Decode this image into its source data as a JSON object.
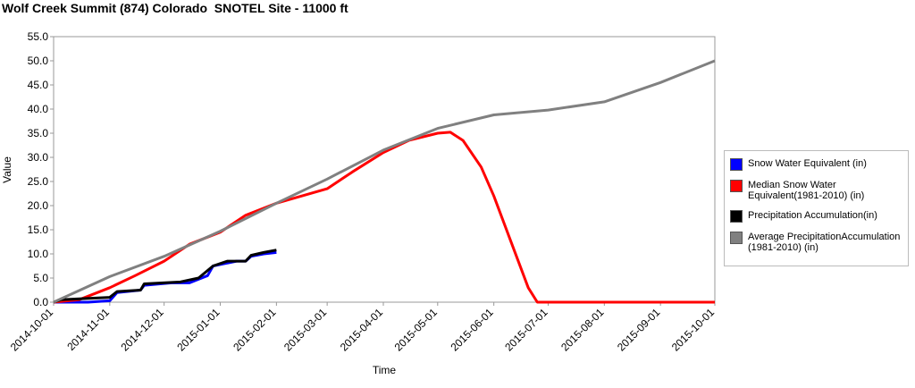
{
  "chart_data": {
    "type": "line",
    "title": "Wolf Creek Summit (874) Colorado  SNOTEL Site - 11000 ft",
    "x_label": "Time",
    "y_label": "Value",
    "xlim": [
      "2014-10-01",
      "2015-10-01"
    ],
    "xticks": [
      "2014-10-01",
      "2014-11-01",
      "2014-12-01",
      "2015-01-01",
      "2015-02-01",
      "2015-03-01",
      "2015-04-01",
      "2015-05-01",
      "2015-06-01",
      "2015-07-01",
      "2015-08-01",
      "2015-09-01",
      "2015-10-01"
    ],
    "ylim": [
      0,
      55
    ],
    "yticks": [
      {
        "value": 0,
        "label": "0.0"
      },
      {
        "value": 5,
        "label": "5.0"
      },
      {
        "value": 10,
        "label": "10.0"
      },
      {
        "value": 15,
        "label": "15.0"
      },
      {
        "value": 20,
        "label": "20.0"
      },
      {
        "value": 25,
        "label": "25.0"
      },
      {
        "value": 30,
        "label": "30.0"
      },
      {
        "value": 35,
        "label": "35.0"
      },
      {
        "value": 40,
        "label": "40.0"
      },
      {
        "value": 45,
        "label": "45.0"
      },
      {
        "value": 50,
        "label": "50.0"
      },
      {
        "value": 55,
        "label": "55.0"
      }
    ],
    "grid": false,
    "series": [
      {
        "name": "Snow Water Equivalent (in)",
        "color": "#0000ff",
        "x": [
          "2014-10-01",
          "2014-10-20",
          "2014-11-01",
          "2014-11-05",
          "2014-11-18",
          "2014-11-20",
          "2014-12-05",
          "2014-12-15",
          "2014-12-25",
          "2014-12-28",
          "2015-01-10",
          "2015-01-15",
          "2015-01-18",
          "2015-01-25",
          "2015-02-01"
        ],
        "values": [
          0,
          0,
          0.3,
          2,
          2.5,
          3.5,
          4,
          4,
          5.5,
          7.5,
          8.5,
          8.5,
          9.5,
          10,
          10.3
        ]
      },
      {
        "name": "Median Snow Water Equivalent(1981-2010) (in)",
        "color": "#ff0000",
        "x": [
          "2014-10-01",
          "2014-10-15",
          "2014-11-01",
          "2014-11-15",
          "2014-12-01",
          "2014-12-15",
          "2015-01-01",
          "2015-01-15",
          "2015-02-01",
          "2015-02-15",
          "2015-03-01",
          "2015-03-15",
          "2015-04-01",
          "2015-04-15",
          "2015-05-01",
          "2015-05-08",
          "2015-05-15",
          "2015-05-25",
          "2015-06-01",
          "2015-06-10",
          "2015-06-20",
          "2015-06-25",
          "2015-10-01"
        ],
        "values": [
          0,
          0.5,
          3,
          5.5,
          8.5,
          12,
          14.5,
          18,
          20.5,
          22,
          23.5,
          27,
          31,
          33.5,
          35,
          35.2,
          33.5,
          28,
          22,
          13,
          3,
          0,
          0
        ]
      },
      {
        "name": "Precipitation Accumulation(in)",
        "color": "#000000",
        "x": [
          "2014-10-01",
          "2014-10-05",
          "2014-11-01",
          "2014-11-05",
          "2014-11-18",
          "2014-11-20",
          "2014-12-10",
          "2014-12-20",
          "2014-12-28",
          "2015-01-05",
          "2015-01-15",
          "2015-01-18",
          "2015-01-25",
          "2015-02-01"
        ],
        "values": [
          0,
          0.5,
          1,
          2.2,
          2.5,
          3.8,
          4.2,
          5,
          7.5,
          8.5,
          8.5,
          9.7,
          10.3,
          10.8
        ]
      },
      {
        "name": "Average PrecipitationAccumulation (1981-2010) (in)",
        "color": "#808080",
        "x": [
          "2014-10-01",
          "2014-11-01",
          "2014-12-01",
          "2015-01-01",
          "2015-02-01",
          "2015-03-01",
          "2015-04-01",
          "2015-05-01",
          "2015-06-01",
          "2015-07-01",
          "2015-08-01",
          "2015-09-01",
          "2015-10-01"
        ],
        "values": [
          0,
          5.3,
          9.5,
          14.7,
          20.5,
          25.5,
          31.5,
          36,
          38.8,
          39.8,
          41.5,
          45.5,
          50
        ]
      }
    ]
  }
}
